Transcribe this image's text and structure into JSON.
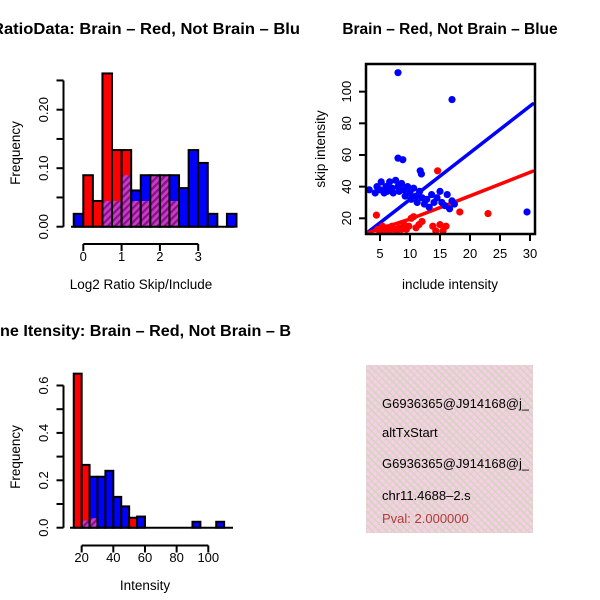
{
  "colors": {
    "red": "#ff0000",
    "blue": "#0000ff",
    "purple_base": "#c73cc7",
    "purple_stripe": "#8a0f8a",
    "axis_black": "#000000",
    "pval_red": "#b23a3a",
    "info_box_pink": "#f7cfe5"
  },
  "chart_data": [
    {
      "id": "log2_ratio_hist",
      "type": "bar",
      "title": "RatioData: Brain – Red, Not Brain – Blu",
      "xlabel": "Log2 Ratio Skip/Include",
      "ylabel": "Frequency",
      "bin_width": 0.25,
      "xlim": [
        -0.25,
        4.0
      ],
      "ylim": [
        0,
        0.26
      ],
      "grid": false,
      "xticks": [
        0,
        1,
        2,
        3
      ],
      "yticks": [
        {
          "v": 0.0,
          "label": "0.00"
        },
        {
          "v": 0.05,
          "label": ""
        },
        {
          "v": 0.1,
          "label": "0.10"
        },
        {
          "v": 0.15,
          "label": ""
        },
        {
          "v": 0.2,
          "label": "0.20"
        },
        {
          "v": 0.25,
          "label": ""
        }
      ],
      "bars": [
        {
          "x": -0.25,
          "h": 0.022,
          "c": "blue"
        },
        {
          "x": 0.0,
          "h": 0.088,
          "c": "red"
        },
        {
          "x": 0.25,
          "h": 0.044,
          "c": "red"
        },
        {
          "x": 0.5,
          "h": 0.262,
          "c": "red",
          "o": 0.044
        },
        {
          "x": 0.75,
          "h": 0.131,
          "c": "red",
          "o": 0.044
        },
        {
          "x": 1.0,
          "h": 0.131,
          "c": "red",
          "o": 0.088
        },
        {
          "x": 1.25,
          "h": 0.062,
          "c": "blue",
          "o": 0.044
        },
        {
          "x": 1.5,
          "h": 0.088,
          "c": "blue",
          "o": 0.044
        },
        {
          "x": 1.75,
          "h": 0.088,
          "c": "purple",
          "o": 0.088
        },
        {
          "x": 2.0,
          "h": 0.088,
          "c": "purple",
          "o": 0.088
        },
        {
          "x": 2.25,
          "h": 0.088,
          "c": "blue",
          "o": 0.044
        },
        {
          "x": 2.5,
          "h": 0.066,
          "c": "blue"
        },
        {
          "x": 2.75,
          "h": 0.131,
          "c": "blue"
        },
        {
          "x": 3.0,
          "h": 0.109,
          "c": "blue"
        },
        {
          "x": 3.25,
          "h": 0.022,
          "c": "blue"
        },
        {
          "x": 3.75,
          "h": 0.022,
          "c": "blue"
        }
      ]
    },
    {
      "id": "intensity_scatter",
      "type": "scatter",
      "title": "Brain – Red, Not Brain – Blue",
      "xlabel": "include intensity",
      "ylabel": "skip intensity",
      "xlim": [
        2.7,
        30.8
      ],
      "ylim": [
        10,
        117
      ],
      "grid": false,
      "xticks": [
        5,
        10,
        15,
        20,
        25,
        30
      ],
      "yticks": [
        20,
        40,
        60,
        80,
        100
      ],
      "series": [
        {
          "name": "not_brain_points",
          "color": "blue",
          "points": [
            [
              8,
              112
            ],
            [
              17,
              95
            ],
            [
              8,
              58
            ],
            [
              8.8,
              57
            ],
            [
              11.7,
              50
            ],
            [
              11.9,
              48
            ],
            [
              3.2,
              38
            ],
            [
              4.2,
              36
            ],
            [
              4.5,
              40
            ],
            [
              5,
              38
            ],
            [
              5.2,
              43
            ],
            [
              5.7,
              36
            ],
            [
              6,
              40
            ],
            [
              6.2,
              37
            ],
            [
              6.6,
              43
            ],
            [
              7,
              39
            ],
            [
              7.2,
              36
            ],
            [
              7.6,
              44
            ],
            [
              8,
              40
            ],
            [
              8.2,
              37
            ],
            [
              8.6,
              42
            ],
            [
              9,
              38
            ],
            [
              9.2,
              34
            ],
            [
              9.6,
              40
            ],
            [
              10,
              36
            ],
            [
              10.2,
              32
            ],
            [
              10.6,
              39
            ],
            [
              11,
              34
            ],
            [
              11.2,
              30
            ],
            [
              11.6,
              37
            ],
            [
              12,
              33
            ],
            [
              12.4,
              29
            ],
            [
              12.8,
              32
            ],
            [
              13.2,
              27
            ],
            [
              13.6,
              35
            ],
            [
              14,
              30
            ],
            [
              14.5,
              33
            ],
            [
              15,
              37
            ],
            [
              15.3,
              30
            ],
            [
              15.8,
              28
            ],
            [
              16.2,
              35
            ],
            [
              16.6,
              26
            ],
            [
              17,
              31
            ],
            [
              17.4,
              29
            ],
            [
              29.5,
              24
            ]
          ]
        },
        {
          "name": "brain_points",
          "color": "red",
          "points": [
            [
              14.6,
              50
            ],
            [
              4.4,
              22
            ],
            [
              4.6,
              13
            ],
            [
              5,
              12
            ],
            [
              5.4,
              15
            ],
            [
              5.8,
              12
            ],
            [
              6.2,
              14
            ],
            [
              6.6,
              12
            ],
            [
              7,
              15
            ],
            [
              7.4,
              13
            ],
            [
              7.8,
              12
            ],
            [
              8.2,
              14
            ],
            [
              8.6,
              13
            ],
            [
              9,
              16
            ],
            [
              9.4,
              13
            ],
            [
              9.8,
              15
            ],
            [
              10.2,
              20
            ],
            [
              10.6,
              21
            ],
            [
              11,
              14
            ],
            [
              11.5,
              16
            ],
            [
              12,
              18
            ],
            [
              13.8,
              15
            ],
            [
              14.3,
              12
            ],
            [
              15,
              16
            ],
            [
              15.5,
              12
            ],
            [
              16,
              15
            ],
            [
              18.3,
              24
            ],
            [
              23,
              23
            ]
          ]
        }
      ],
      "lines": [
        {
          "name": "not_brain_fit",
          "color": "blue",
          "points": [
            [
              2.7,
              10.4
            ],
            [
              30.45,
              92.2
            ]
          ]
        },
        {
          "name": "brain_fit",
          "color": "red",
          "points": [
            [
              2.7,
              10.5
            ],
            [
              10,
              19.5
            ],
            [
              18.3,
              31.6
            ],
            [
              30.45,
              49.7
            ]
          ]
        }
      ]
    },
    {
      "id": "gene_intensity_hist",
      "type": "bar",
      "title": "ene Itensity: Brain – Red, Not Brain – B",
      "xlabel": "Intensity",
      "ylabel": "Frequency",
      "bin_width": 5,
      "xlim": [
        15,
        110
      ],
      "ylim": [
        0,
        0.65
      ],
      "grid": false,
      "xticks": [
        20,
        40,
        60,
        80,
        100
      ],
      "yticks": [
        {
          "v": 0.0,
          "label": "0.0"
        },
        {
          "v": 0.1,
          "label": ""
        },
        {
          "v": 0.2,
          "label": "0.2"
        },
        {
          "v": 0.3,
          "label": ""
        },
        {
          "v": 0.4,
          "label": "0.4"
        },
        {
          "v": 0.5,
          "label": ""
        },
        {
          "v": 0.6,
          "label": "0.6"
        }
      ],
      "bars": [
        {
          "x": 15,
          "h": 0.65,
          "c": "red"
        },
        {
          "x": 20,
          "h": 0.265,
          "c": "red",
          "o": 0.03
        },
        {
          "x": 25,
          "h": 0.215,
          "c": "blue",
          "o": 0.04
        },
        {
          "x": 30,
          "h": 0.215,
          "c": "blue"
        },
        {
          "x": 35,
          "h": 0.24,
          "c": "blue"
        },
        {
          "x": 40,
          "h": 0.13,
          "c": "blue"
        },
        {
          "x": 45,
          "h": 0.09,
          "c": "blue"
        },
        {
          "x": 50,
          "h": 0.042,
          "c": "red"
        },
        {
          "x": 55,
          "h": 0.047,
          "c": "blue"
        },
        {
          "x": 90,
          "h": 0.025,
          "c": "blue"
        },
        {
          "x": 105,
          "h": 0.025,
          "c": "blue"
        }
      ]
    }
  ],
  "info_box": {
    "lines": [
      {
        "text": "G6936365@J914168@j_",
        "color": "black"
      },
      {
        "text": "altTxStart",
        "color": "black"
      },
      {
        "text": "G6936365@J914168@j_",
        "color": "black"
      },
      {
        "text": "chr11.4688–2.s",
        "color": "black"
      },
      {
        "text": "Pval: 2.000000",
        "color": "pval_red"
      }
    ]
  }
}
